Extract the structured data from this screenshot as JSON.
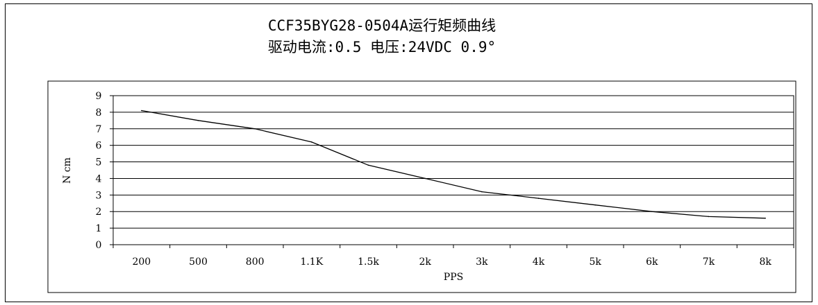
{
  "chart_data": {
    "type": "line",
    "title": "CCF35BYG28-0504A运行矩频曲线",
    "subtitle": "驱动电流:0.5 电压:24VDC 0.9°",
    "xlabel": "PPS",
    "ylabel": "N cm",
    "categories": [
      "200",
      "500",
      "800",
      "1.1K",
      "1.5k",
      "2k",
      "3k",
      "4k",
      "5k",
      "6k",
      "7k",
      "8k"
    ],
    "values": [
      8.1,
      7.5,
      7.0,
      6.2,
      4.8,
      4.0,
      3.2,
      2.8,
      2.4,
      2.0,
      1.7,
      1.6
    ],
    "ylim": [
      0,
      9
    ],
    "yticks": [
      "0",
      "1",
      "2",
      "3",
      "4",
      "5",
      "6",
      "7",
      "8",
      "9"
    ],
    "grid": "horizontal",
    "legend": "none",
    "line_color": "#000000"
  }
}
